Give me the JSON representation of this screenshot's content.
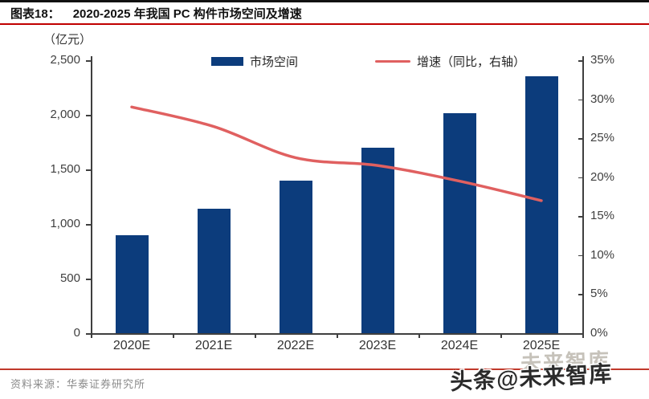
{
  "header": {
    "tag": "图表18：",
    "title": "2020-2025 年我国 PC 构件市场空间及增速"
  },
  "chart_data": {
    "type": "bar+line",
    "title": "2020-2025 年我国 PC 构件市场空间及增速",
    "categories": [
      "2020E",
      "2021E",
      "2022E",
      "2023E",
      "2024E",
      "2025E"
    ],
    "series": [
      {
        "name": "市场空间",
        "type": "bar",
        "axis": "left",
        "color": "#0c3c7c",
        "values": [
          900,
          1140,
          1400,
          1700,
          2015,
          2350
        ]
      },
      {
        "name": "增速（同比，右轴）",
        "type": "line",
        "axis": "right",
        "color": "#e06060",
        "unit": "%",
        "values": [
          29,
          26.5,
          22.5,
          21.5,
          19.5,
          17
        ]
      }
    ],
    "left_axis": {
      "unit_label": "（亿元）",
      "min": 0,
      "max": 2500,
      "step": 500,
      "tick_labels": [
        "0",
        "500",
        "1,000",
        "1,500",
        "2,000",
        "2,500"
      ]
    },
    "right_axis": {
      "min": 0,
      "max": 35,
      "step": 5,
      "tick_labels": [
        "0%",
        "5%",
        "10%",
        "15%",
        "20%",
        "25%",
        "30%",
        "35%"
      ]
    },
    "legend_position": "top",
    "grid": false
  },
  "footer": {
    "source": "资料来源：华泰证券研究所"
  },
  "watermark": {
    "ghost": "未来智库",
    "badge": "头条@未来智库"
  }
}
